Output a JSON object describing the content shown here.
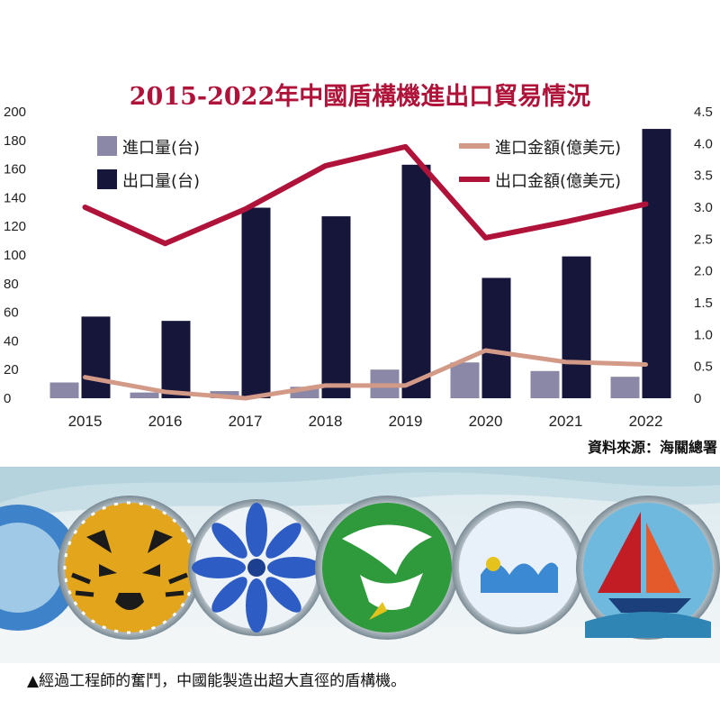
{
  "chart_data": {
    "type": "bar+line",
    "title": "2015-2022年中國盾構機進出口貿易情況",
    "categories": [
      "2015",
      "2016",
      "2017",
      "2018",
      "2019",
      "2020",
      "2021",
      "2022"
    ],
    "left_axis": {
      "ticks": [
        "0",
        "20",
        "40",
        "60",
        "80",
        "100",
        "120",
        "140",
        "160",
        "180",
        "200"
      ],
      "ylim": [
        0,
        200
      ]
    },
    "right_axis": {
      "ticks": [
        "0",
        "0.5",
        "1.0",
        "1.5",
        "2.0",
        "2.5",
        "3.0",
        "3.5",
        "4.0",
        "4.5"
      ],
      "ylim": [
        0,
        4.5
      ]
    },
    "bar_series": [
      {
        "name": "進口量(台)",
        "color": "#8a88a6",
        "values": [
          11,
          4,
          5,
          8,
          20,
          25,
          19,
          15
        ]
      },
      {
        "name": "出口量(台)",
        "color": "#15163a",
        "values": [
          57,
          54,
          133,
          127,
          163,
          84,
          99,
          188
        ]
      }
    ],
    "line_series": [
      {
        "name": "進口金額(億美元)",
        "color": "#d49a88",
        "values": [
          0.33,
          0.1,
          0.0,
          0.2,
          0.2,
          0.75,
          0.57,
          0.53
        ]
      },
      {
        "name": "出口金額(億美元)",
        "color": "#b0133a",
        "values": [
          3.0,
          2.43,
          2.97,
          3.65,
          3.95,
          2.52,
          2.77,
          3.05
        ]
      }
    ],
    "source": "資料來源：海關總署",
    "legend_placement": "top"
  },
  "photo": {
    "caption": "▲經過工程師的奮鬥，中國能製造出超大直徑的盾構機。",
    "theme_colors": [
      "#e3a51b",
      "#2c5cc4",
      "#2e9a3c",
      "#3a89d2",
      "#c21c24"
    ]
  }
}
